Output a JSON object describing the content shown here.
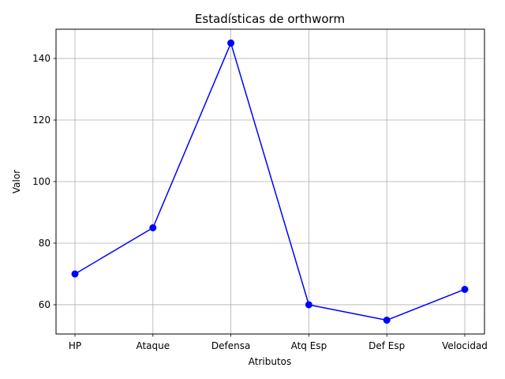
{
  "chart_data": {
    "type": "line",
    "title": "Estadísticas de orthworm",
    "xlabel": "Atributos",
    "ylabel": "Valor",
    "categories": [
      "HP",
      "Ataque",
      "Defensa",
      "Atq Esp",
      "Def Esp",
      "Velocidad"
    ],
    "series": [
      {
        "values": [
          70,
          85,
          145,
          60,
          55,
          65
        ],
        "color": "#0000ff",
        "marker": "circle"
      }
    ],
    "ylim": [
      50.5,
      149.5
    ],
    "yticks": [
      60,
      80,
      100,
      120,
      140
    ],
    "grid": true
  }
}
